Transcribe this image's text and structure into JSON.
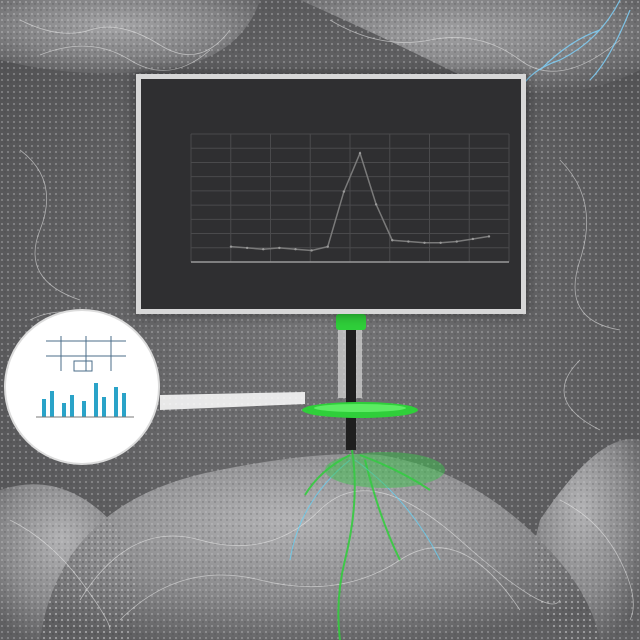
{
  "scene": {
    "description_colors": {
      "background": "#5d5d5f",
      "tissue": "#8a8a8c",
      "vein": "#f2f2f2",
      "accent_green": "#2fcf3a",
      "stem": "#1e1e1e",
      "screen": "#2f2f31",
      "screen_frame": "#d7d7d7",
      "chart_line": "#7a7a7a",
      "inset_bars": "#2aa3c8"
    },
    "icons": [
      "tissue-blob",
      "monitor-screen",
      "magnifier-inset",
      "green-probe",
      "vein-network"
    ]
  },
  "board": {
    "title": "",
    "subtitle": ""
  },
  "chart_data": {
    "type": "line",
    "title": "",
    "xlabel": "",
    "ylabel": "",
    "grid": true,
    "series": [
      {
        "name": "",
        "values": [
          0.12,
          0.11,
          0.1,
          0.11,
          0.1,
          0.09,
          0.12,
          0.55,
          0.85,
          0.45,
          0.17,
          0.16,
          0.15,
          0.15,
          0.16,
          0.18,
          0.2
        ]
      }
    ],
    "ylim": [
      0,
      1
    ]
  }
}
